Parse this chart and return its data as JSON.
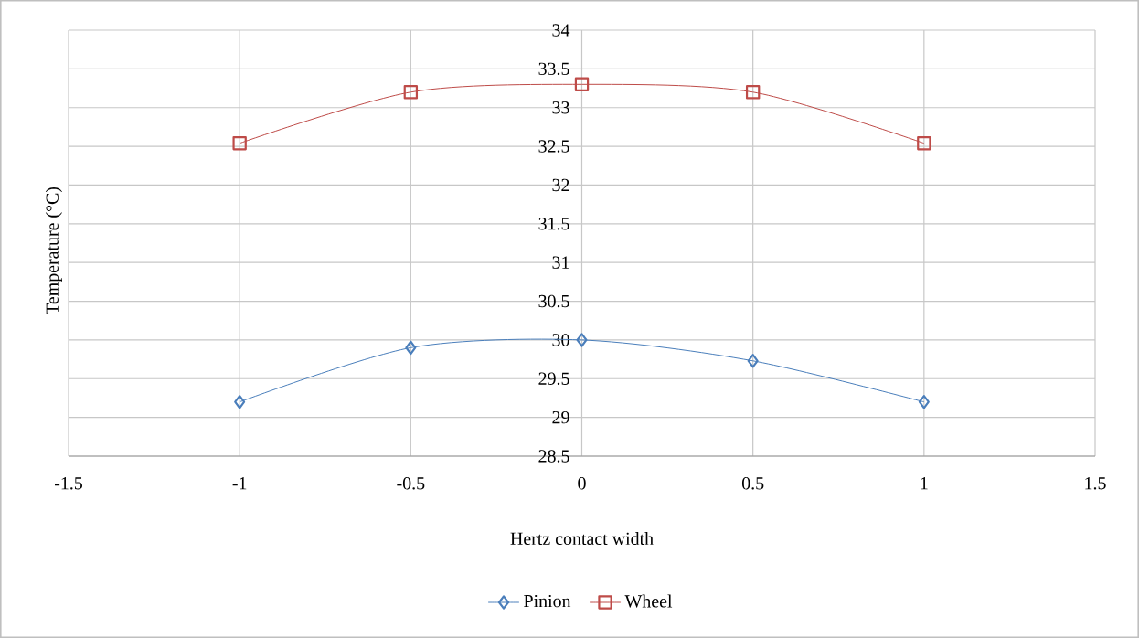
{
  "chart_data": {
    "type": "line",
    "xlabel": "Hertz contact width",
    "ylabel": "Temperature (°C)",
    "x": [
      -1,
      -0.5,
      0,
      0.5,
      1
    ],
    "series": [
      {
        "name": "Pinion",
        "color": "#4a7ebb",
        "marker": "diamond",
        "values": [
          29.2,
          29.9,
          30.0,
          29.73,
          29.2
        ]
      },
      {
        "name": "Wheel",
        "color": "#be4b48",
        "marker": "square",
        "values": [
          32.54,
          33.2,
          33.3,
          33.2,
          32.54
        ]
      }
    ],
    "xlim": [
      -1.5,
      1.5
    ],
    "xticks": [
      -1.5,
      -1,
      -0.5,
      0,
      0.5,
      1,
      1.5
    ],
    "ylim": [
      28.5,
      34
    ],
    "yticks": [
      28.5,
      29,
      29.5,
      30,
      30.5,
      31,
      31.5,
      32,
      32.5,
      33,
      33.5,
      34
    ],
    "grid": true,
    "legend": "bottom"
  }
}
